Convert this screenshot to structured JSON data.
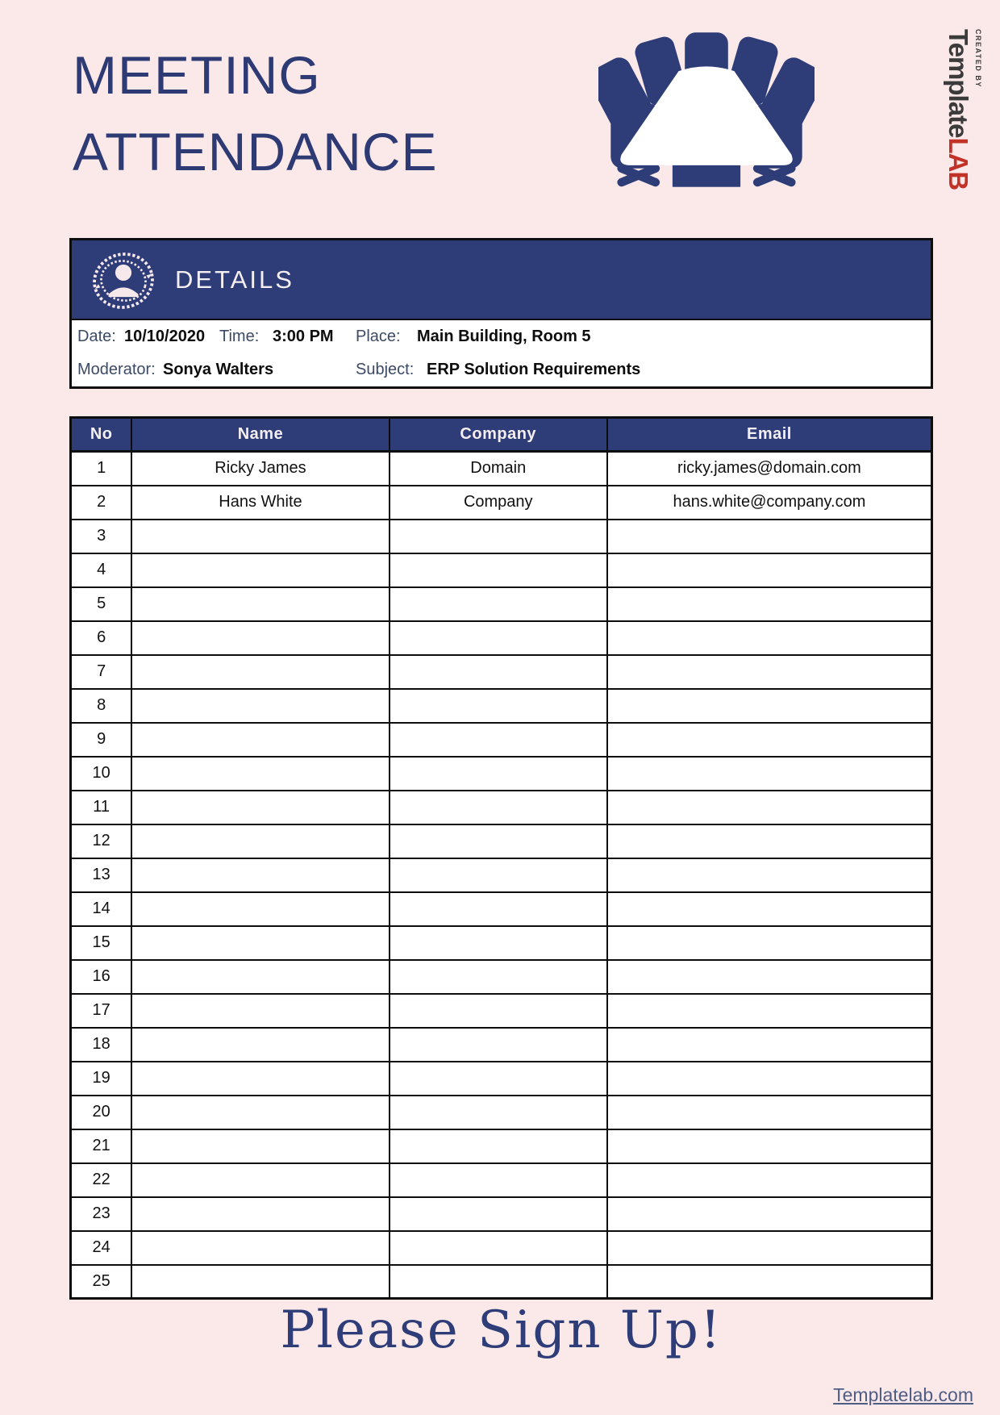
{
  "header": {
    "title_line1": "MEETING",
    "title_line2": "ATTENDANCE",
    "logo": {
      "created_by": "CREATED BY",
      "brand_template": "Template",
      "brand_lab": "LAB"
    }
  },
  "details": {
    "heading": "DETAILS",
    "date_label": "Date:",
    "date": "10/10/2020",
    "time_label": "Time:",
    "time": "3:00 PM",
    "place_label": "Place:",
    "place": "Main Building, Room 5",
    "moderator_label": "Moderator:",
    "moderator": "Sonya Walters",
    "subject_label": "Subject:",
    "subject": "ERP Solution Requirements"
  },
  "table": {
    "headers": [
      "No",
      "Name",
      "Company",
      "Email"
    ],
    "rows": [
      {
        "no": "1",
        "name": "Ricky James",
        "company": "Domain",
        "email": "ricky.james@domain.com"
      },
      {
        "no": "2",
        "name": "Hans White",
        "company": "Company",
        "email": "hans.white@company.com"
      },
      {
        "no": "3",
        "name": "",
        "company": "",
        "email": ""
      },
      {
        "no": "4",
        "name": "",
        "company": "",
        "email": ""
      },
      {
        "no": "5",
        "name": "",
        "company": "",
        "email": ""
      },
      {
        "no": "6",
        "name": "",
        "company": "",
        "email": ""
      },
      {
        "no": "7",
        "name": "",
        "company": "",
        "email": ""
      },
      {
        "no": "8",
        "name": "",
        "company": "",
        "email": ""
      },
      {
        "no": "9",
        "name": "",
        "company": "",
        "email": ""
      },
      {
        "no": "10",
        "name": "",
        "company": "",
        "email": ""
      },
      {
        "no": "11",
        "name": "",
        "company": "",
        "email": ""
      },
      {
        "no": "12",
        "name": "",
        "company": "",
        "email": ""
      },
      {
        "no": "13",
        "name": "",
        "company": "",
        "email": ""
      },
      {
        "no": "14",
        "name": "",
        "company": "",
        "email": ""
      },
      {
        "no": "15",
        "name": "",
        "company": "",
        "email": ""
      },
      {
        "no": "16",
        "name": "",
        "company": "",
        "email": ""
      },
      {
        "no": "17",
        "name": "",
        "company": "",
        "email": ""
      },
      {
        "no": "18",
        "name": "",
        "company": "",
        "email": ""
      },
      {
        "no": "19",
        "name": "",
        "company": "",
        "email": ""
      },
      {
        "no": "20",
        "name": "",
        "company": "",
        "email": ""
      },
      {
        "no": "21",
        "name": "",
        "company": "",
        "email": ""
      },
      {
        "no": "22",
        "name": "",
        "company": "",
        "email": ""
      },
      {
        "no": "23",
        "name": "",
        "company": "",
        "email": ""
      },
      {
        "no": "24",
        "name": "",
        "company": "",
        "email": ""
      },
      {
        "no": "25",
        "name": "",
        "company": "",
        "email": ""
      }
    ]
  },
  "footer": {
    "signup": "Please Sign Up!",
    "site": "Templatelab.com"
  },
  "colors": {
    "page_background": "#fbe9ea",
    "navy": "#2e3d78",
    "title_navy": "#2e3a73",
    "border_black": "#0d0d0d",
    "label_slate": "#3c4a66",
    "logo_red": "#c23227",
    "link_slate": "#4f5d85"
  },
  "icons": [
    "conference-table-icon",
    "person-refresh-icon"
  ]
}
